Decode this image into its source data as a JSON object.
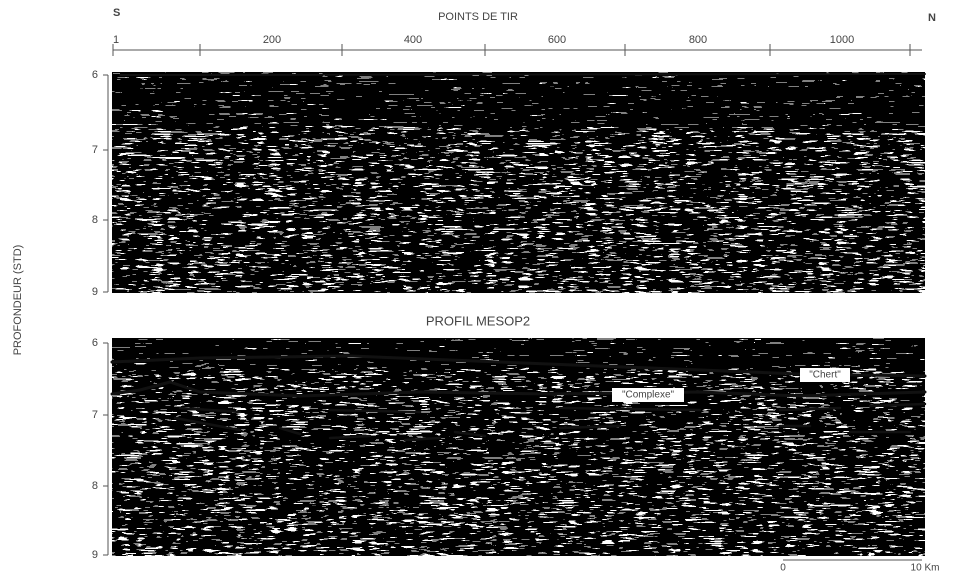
{
  "header": {
    "left": "S",
    "right": "N"
  },
  "top_axis": {
    "title": "POINTS DE TIR",
    "ticks": [
      "1",
      "200",
      "400",
      "600",
      "800",
      "1000"
    ]
  },
  "left_axis": {
    "title": "PROFONDEUR (STD)"
  },
  "upper_panel": {
    "ticks": [
      "6",
      "7",
      "8",
      "9"
    ]
  },
  "lower_panel": {
    "title": "PROFIL MESOP2",
    "ticks": [
      "6",
      "7",
      "8",
      "9"
    ],
    "annotations": [
      "\"Chert\"",
      "\"Complexe\""
    ]
  },
  "scale_bar": {
    "start": "0",
    "end": "10 Km"
  }
}
